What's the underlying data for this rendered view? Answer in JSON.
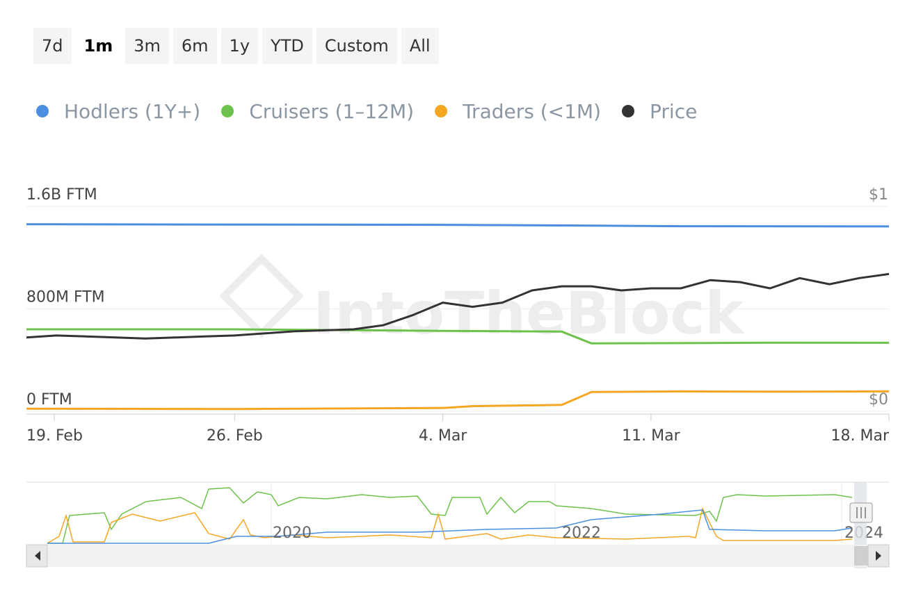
{
  "range_buttons": [
    {
      "label": "7d",
      "active": false
    },
    {
      "label": "1m",
      "active": true
    },
    {
      "label": "3m",
      "active": false
    },
    {
      "label": "6m",
      "active": false
    },
    {
      "label": "1y",
      "active": false
    },
    {
      "label": "YTD",
      "active": false
    },
    {
      "label": "Custom",
      "active": false
    },
    {
      "label": "All",
      "active": false
    }
  ],
  "watermark": "IntoTheBlock",
  "colors": {
    "hodlers": "#4a8fe0",
    "cruisers": "#6cc24a",
    "traders": "#f5a623",
    "price": "#333333"
  },
  "chart_data": {
    "type": "line",
    "legend": [
      "Hodlers (1Y+)",
      "Cruisers (1–12M)",
      "Traders (<1M)",
      "Price"
    ],
    "y_left": {
      "ticks": [
        "1.6B FTM",
        "800M FTM",
        "0 FTM"
      ],
      "range": [
        0,
        1600000000
      ]
    },
    "y_right": {
      "ticks": [
        "$1",
        "$0"
      ],
      "range": [
        0,
        1
      ]
    },
    "x_ticks": [
      {
        "day": 0,
        "label": "19. Feb"
      },
      {
        "day": 7,
        "label": "26. Feb"
      },
      {
        "day": 14,
        "label": "4. Mar"
      },
      {
        "day": 21,
        "label": "11. Mar"
      },
      {
        "day": 28,
        "label": "18. Mar"
      }
    ],
    "series": [
      {
        "name": "Hodlers (1Y+)",
        "axis": "left",
        "values": [
          [
            0,
            1460000000
          ],
          [
            7,
            1458000000
          ],
          [
            14,
            1456000000
          ],
          [
            19,
            1450000000
          ],
          [
            22,
            1445000000
          ],
          [
            28,
            1443000000
          ],
          [
            29,
            1443000000
          ]
        ]
      },
      {
        "name": "Cruisers (1–12M)",
        "axis": "left",
        "values": [
          [
            0,
            640000000
          ],
          [
            7,
            640000000
          ],
          [
            14,
            628000000
          ],
          [
            18,
            622000000
          ],
          [
            19,
            530000000
          ],
          [
            22,
            532000000
          ],
          [
            25,
            536000000
          ],
          [
            29,
            535000000
          ]
        ]
      },
      {
        "name": "Traders (<1M)",
        "axis": "left",
        "values": [
          [
            0,
            20000000
          ],
          [
            7,
            18000000
          ],
          [
            14,
            26000000
          ],
          [
            15,
            40000000
          ],
          [
            18,
            50000000
          ],
          [
            19,
            150000000
          ],
          [
            22,
            155000000
          ],
          [
            25,
            153000000
          ],
          [
            29,
            155000000
          ]
        ]
      },
      {
        "name": "Price",
        "axis": "right",
        "values": [
          [
            0,
            0.36
          ],
          [
            1,
            0.37
          ],
          [
            2,
            0.365
          ],
          [
            3,
            0.36
          ],
          [
            4,
            0.355
          ],
          [
            5,
            0.36
          ],
          [
            6,
            0.365
          ],
          [
            7,
            0.37
          ],
          [
            8,
            0.38
          ],
          [
            9,
            0.39
          ],
          [
            10,
            0.395
          ],
          [
            11,
            0.4
          ],
          [
            12,
            0.42
          ],
          [
            13,
            0.47
          ],
          [
            14,
            0.53
          ],
          [
            15,
            0.51
          ],
          [
            16,
            0.53
          ],
          [
            17,
            0.59
          ],
          [
            18,
            0.61
          ],
          [
            19,
            0.61
          ],
          [
            20,
            0.59
          ],
          [
            21,
            0.6
          ],
          [
            22,
            0.6
          ],
          [
            23,
            0.64
          ],
          [
            24,
            0.63
          ],
          [
            25,
            0.6
          ],
          [
            26,
            0.65
          ],
          [
            27,
            0.62
          ],
          [
            28,
            0.65
          ],
          [
            29,
            0.67
          ]
        ]
      }
    ],
    "navigator": {
      "x_labels": [
        "2020",
        "2022",
        "2024"
      ]
    }
  }
}
